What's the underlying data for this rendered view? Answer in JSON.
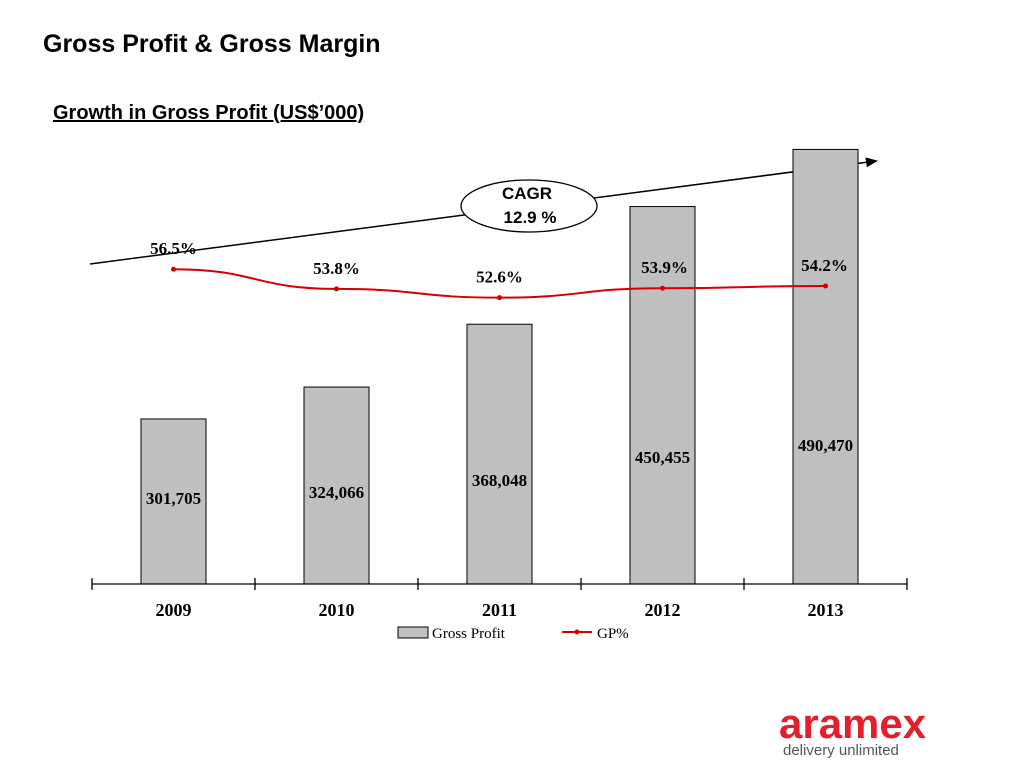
{
  "slide": {
    "title": "Gross Profit & Gross Margin",
    "subtitle": "Growth in Gross Profit (US$’000)"
  },
  "cagr": {
    "label": "CAGR",
    "value": "12.9 %"
  },
  "chart_data": {
    "type": "bar",
    "categories": [
      "2009",
      "2010",
      "2011",
      "2012",
      "2013"
    ],
    "series": [
      {
        "name": "Gross Profit",
        "values": [
          301705,
          324066,
          368048,
          450455,
          490470
        ],
        "labels": [
          "301,705",
          "324,066",
          "368,048",
          "450,455",
          "490,470"
        ]
      },
      {
        "name": "GP%",
        "type": "line",
        "values": [
          56.5,
          53.8,
          52.6,
          53.9,
          54.2
        ],
        "labels": [
          "56.5%",
          "53.8%",
          "52.6%",
          "53.9%",
          "54.2%"
        ]
      }
    ],
    "legend": [
      "Gross Profit",
      "GP%"
    ],
    "legend_position": "bottom",
    "grid": false
  },
  "colors": {
    "bar_fill": "#c0c0c0",
    "bar_stroke": "#000000",
    "line": "#d40000",
    "brand": "#e41f2d",
    "brand_tagline": "#555555"
  },
  "logo": {
    "wordmark": "aramex",
    "tagline": "delivery unlimited"
  }
}
